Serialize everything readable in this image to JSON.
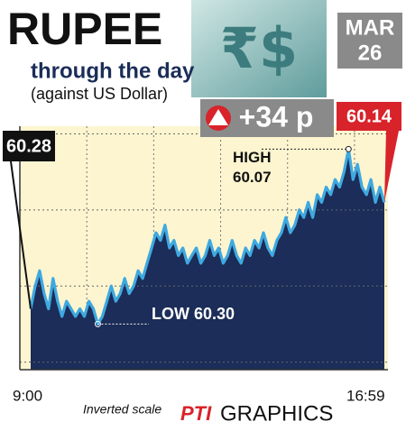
{
  "chart_data": {
    "type": "line",
    "title": "RUPEE",
    "subtitle": "through the day",
    "subtitle2": "(against US Dollar)",
    "icon": "₹$",
    "date": [
      "MAR",
      "26"
    ],
    "change": "+34 p",
    "open_label": "60.28",
    "close_label": "60.14",
    "high_annotation": [
      "HIGH",
      "60.07"
    ],
    "low_annotation": "LOW 60.30",
    "scale_note": "Inverted scale",
    "source": [
      "PTI",
      "GRAPHICS"
    ],
    "categories": [
      "9:00",
      null,
      null,
      null,
      null,
      null,
      null,
      null,
      null,
      null,
      null,
      null,
      null,
      null,
      null,
      null,
      null,
      null,
      null,
      null,
      null,
      null,
      null,
      null,
      null,
      null,
      null,
      null,
      null,
      null,
      null,
      null,
      null,
      null,
      null,
      null,
      null,
      null,
      null,
      null,
      null,
      null,
      null,
      null,
      null,
      null,
      null,
      null,
      null,
      null,
      null,
      null,
      null,
      null,
      null,
      null,
      null,
      null,
      null,
      null,
      null,
      null,
      null,
      null,
      null,
      null,
      null,
      null,
      null,
      null,
      null,
      null,
      null,
      null,
      null,
      null,
      null,
      null,
      null,
      "16:59"
    ],
    "series": [
      {
        "name": "Rupee",
        "color": "#3fa9e0",
        "fill": "#1b2d58",
        "values": [
          60.28,
          60.25,
          60.23,
          60.26,
          60.28,
          60.24,
          60.27,
          60.29,
          60.27,
          60.28,
          60.29,
          60.28,
          60.29,
          60.27,
          60.28,
          60.3,
          60.29,
          60.27,
          60.25,
          60.27,
          60.26,
          60.24,
          60.26,
          60.25,
          60.23,
          60.24,
          60.22,
          60.2,
          60.18,
          60.19,
          60.17,
          60.2,
          60.19,
          60.21,
          60.2,
          60.22,
          60.21,
          60.2,
          60.22,
          60.21,
          60.19,
          60.21,
          60.2,
          60.22,
          60.21,
          60.19,
          60.21,
          60.22,
          60.2,
          60.21,
          60.19,
          60.2,
          60.18,
          60.2,
          60.21,
          60.19,
          60.18,
          60.16,
          60.18,
          60.17,
          60.15,
          60.16,
          60.14,
          60.16,
          60.13,
          60.14,
          60.12,
          60.13,
          60.11,
          60.12,
          60.1,
          60.07,
          60.11,
          60.09,
          60.12,
          60.13,
          60.11,
          60.14,
          60.12,
          60.14
        ]
      }
    ],
    "ylim": [
      60.36,
      60.04
    ],
    "yticks": [
      60.05,
      60.15,
      60.25,
      60.35
    ],
    "inverted": true,
    "grid": true
  }
}
